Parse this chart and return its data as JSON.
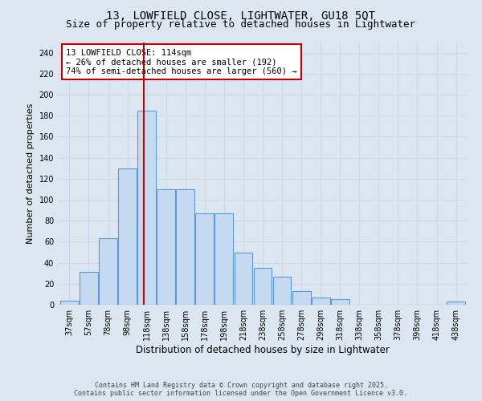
{
  "title_line1": "13, LOWFIELD CLOSE, LIGHTWATER, GU18 5QT",
  "title_line2": "Size of property relative to detached houses in Lightwater",
  "xlabel": "Distribution of detached houses by size in Lightwater",
  "ylabel": "Number of detached properties",
  "categories": [
    "37sqm",
    "57sqm",
    "78sqm",
    "98sqm",
    "118sqm",
    "138sqm",
    "158sqm",
    "178sqm",
    "198sqm",
    "218sqm",
    "238sqm",
    "258sqm",
    "278sqm",
    "298sqm",
    "318sqm",
    "338sqm",
    "358sqm",
    "378sqm",
    "398sqm",
    "418sqm",
    "438sqm"
  ],
  "values": [
    4,
    31,
    63,
    130,
    185,
    110,
    110,
    87,
    87,
    50,
    35,
    27,
    13,
    7,
    5,
    0,
    0,
    0,
    0,
    0,
    3
  ],
  "bar_color": "#c5d9f0",
  "bar_edge_color": "#5b9bd5",
  "bar_edge_width": 0.8,
  "grid_color": "#cdd8ea",
  "background_color": "#dce6f1",
  "vline_color": "#c00000",
  "vline_x_idx": 3.85,
  "annotation_title": "13 LOWFIELD CLOSE: 114sqm",
  "annotation_line1": "← 26% of detached houses are smaller (192)",
  "annotation_line2": "74% of semi-detached houses are larger (560) →",
  "annotation_box_color": "#c00000",
  "annotation_bg": "#ffffff",
  "ylim": [
    0,
    250
  ],
  "yticks": [
    0,
    20,
    40,
    60,
    80,
    100,
    120,
    140,
    160,
    180,
    200,
    220,
    240
  ],
  "footnote1": "Contains HM Land Registry data © Crown copyright and database right 2025.",
  "footnote2": "Contains public sector information licensed under the Open Government Licence v3.0.",
  "title_fontsize": 10,
  "subtitle_fontsize": 9,
  "ylabel_fontsize": 8,
  "xlabel_fontsize": 8.5,
  "tick_fontsize": 7,
  "annot_fontsize": 7.5,
  "footnote_fontsize": 6
}
